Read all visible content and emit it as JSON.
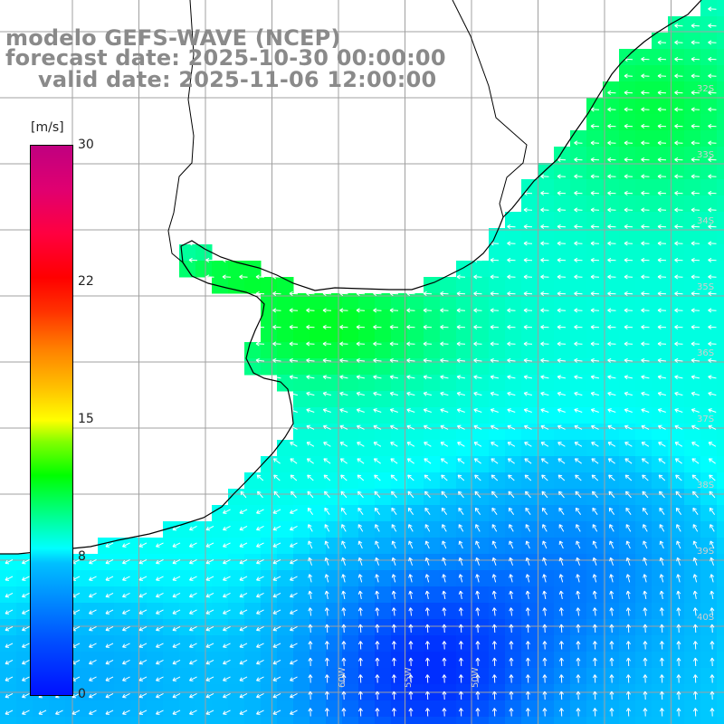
{
  "title": {
    "line1": "modelo GEFS-WAVE (NCEP)",
    "line2": "forecast date: 2025-10-30 00:00:00",
    "line3": "valid date: 2025-11-06 12:00:00"
  },
  "colorbar": {
    "units": "[m/s]",
    "ticks": [
      "30",
      "22",
      "15",
      "8",
      "0"
    ],
    "range": [
      0,
      30
    ]
  },
  "map": {
    "variable": "wind speed and direction",
    "lat_labels": [
      "32S",
      "33S",
      "34S",
      "35S",
      "36S",
      "37S",
      "38S",
      "39S",
      "40S"
    ],
    "lon_labels": [
      "60W",
      "55W",
      "50W"
    ],
    "colors": {
      "land": "#ffffff",
      "coastline": "#000000",
      "grid": "#a0a0a0",
      "vectors": "#ffffff",
      "title": "#8a8a8a"
    }
  }
}
